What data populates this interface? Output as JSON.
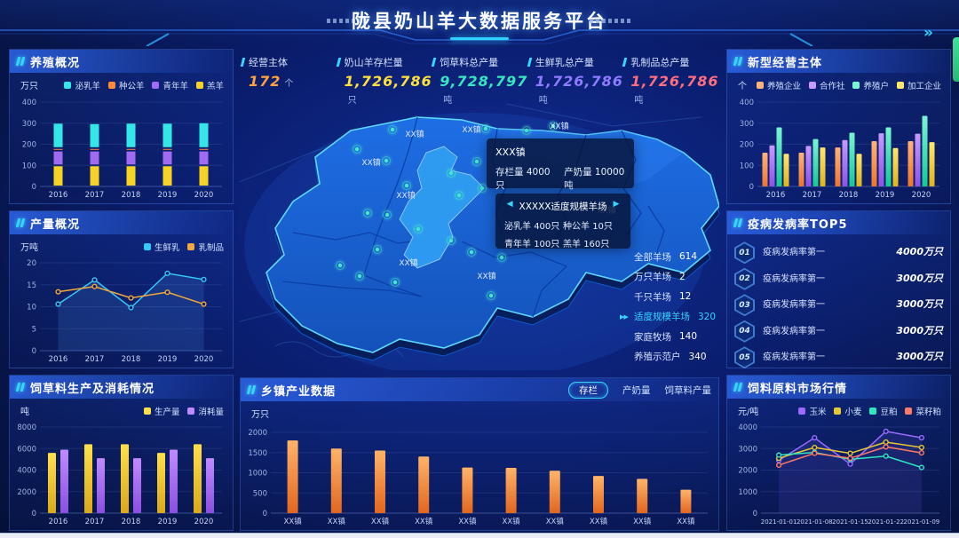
{
  "header": {
    "title": "陇县奶山羊大数据服务平台",
    "more_icon": "»"
  },
  "stats": {
    "items": [
      {
        "label": "经营主体",
        "value": "172",
        "unit": "个",
        "color": "#ffa23e"
      },
      {
        "label": "奶山羊存栏量",
        "value": "1,726,786",
        "unit": "只",
        "color": "#ffe03a"
      },
      {
        "label": "饲草料总产量",
        "value": "9,728,797",
        "unit": "吨",
        "color": "#35e8c0"
      },
      {
        "label": "生鲜乳总产量",
        "value": "1,726,786",
        "unit": "吨",
        "color": "#8f7bff"
      },
      {
        "label": "乳制品总产量",
        "value": "1,726,786",
        "unit": "吨",
        "color": "#ff6e7e"
      }
    ]
  },
  "map": {
    "town_label": "XX镇",
    "highlight_arrows": "▶▶",
    "tooltip_town": {
      "name": "XXX镇",
      "stock_label": "存栏量",
      "stock_value": "4000只",
      "milk_label": "产奶量",
      "milk_value": "10000吨"
    },
    "tooltip_farm": {
      "prev": "◀",
      "next": "▶",
      "title": "XXXXX适度规模羊场",
      "rows": [
        {
          "label": "泌乳羊",
          "value": "400只"
        },
        {
          "label": "种公羊",
          "value": "10只"
        },
        {
          "label": "青年羊",
          "value": "100只"
        },
        {
          "label": "羔羊",
          "value": "160只"
        }
      ]
    },
    "farm_stats": [
      {
        "label": "全部羊场",
        "value": "614",
        "highlight": false
      },
      {
        "label": "万只羊场",
        "value": "2",
        "highlight": false
      },
      {
        "label": "千只羊场",
        "value": "12",
        "highlight": false
      },
      {
        "label": "适度规模羊场",
        "value": "320",
        "highlight": true
      },
      {
        "label": "家庭牧场",
        "value": "140",
        "highlight": false
      },
      {
        "label": "养殖示范户",
        "value": "340",
        "highlight": false
      }
    ]
  },
  "panels": {
    "breeding": {
      "title": "养殖概况"
    },
    "production": {
      "title": "产量概况"
    },
    "feed": {
      "title": "饲草料生产及消耗情况"
    },
    "township": {
      "title": "乡镇产业数据",
      "tabs": [
        {
          "label": "存栏",
          "active": true
        },
        {
          "label": "产奶量",
          "active": false
        },
        {
          "label": "饲草料产量",
          "active": false
        }
      ]
    },
    "entities": {
      "title": "新型经营主体"
    },
    "disease": {
      "title": "疫病发病率TOP5",
      "rows": [
        {
          "rank": "01",
          "label": "疫病发病率第一",
          "value": "4000万只",
          "percent": 100
        },
        {
          "rank": "02",
          "label": "疫病发病率第一",
          "value": "3000万只",
          "percent": 82
        },
        {
          "rank": "03",
          "label": "疫病发病率第一",
          "value": "3000万只",
          "percent": 74
        },
        {
          "rank": "04",
          "label": "疫病发病率第一",
          "value": "3000万只",
          "percent": 69
        },
        {
          "rank": "05",
          "label": "疫病发病率第一",
          "value": "3000万只",
          "percent": 59
        }
      ]
    },
    "market": {
      "title": "饲料原料市场行情"
    }
  },
  "chart_data": [
    {
      "id": "breeding_overview",
      "type": "stacked_bar",
      "title": "养殖概况",
      "unit": "万只",
      "categories": [
        "2016",
        "2017",
        "2018",
        "2019",
        "2020"
      ],
      "ylim": [
        0,
        400
      ],
      "yticks": [
        0,
        100,
        200,
        300,
        400
      ],
      "series": [
        {
          "name": "羔羊",
          "color": "#f7d325",
          "values": [
            100,
            100,
            100,
            100,
            100
          ]
        },
        {
          "name": "青年羊",
          "color": "#a06bf0",
          "values": [
            70,
            70,
            70,
            70,
            70
          ]
        },
        {
          "name": "种公羊",
          "color": "#ff8a3c",
          "values": [
            12,
            12,
            12,
            12,
            12
          ]
        },
        {
          "name": "泌乳羊",
          "color": "#35e6e6",
          "values": [
            120,
            118,
            120,
            120,
            122
          ]
        }
      ],
      "legend": [
        {
          "label": "泌乳羊",
          "color": "#35e6e6"
        },
        {
          "label": "种公羊",
          "color": "#ff8a3c"
        },
        {
          "label": "青年羊",
          "color": "#a06bf0"
        },
        {
          "label": "羔羊",
          "color": "#f7d325"
        }
      ]
    },
    {
      "id": "production_overview",
      "type": "line",
      "title": "产量概况",
      "unit": "万吨",
      "categories": [
        "2016",
        "2017",
        "2018",
        "2019",
        "2020"
      ],
      "ylim": [
        0,
        20
      ],
      "yticks": [
        0,
        5,
        10,
        15,
        20
      ],
      "series": [
        {
          "name": "生鲜乳",
          "color": "#38c8f5",
          "area": "rgba(80,150,240,0.18)",
          "values": [
            10.6,
            16.1,
            9.8,
            17.6,
            16.2
          ]
        },
        {
          "name": "乳制品",
          "color": "#f2a93b",
          "values": [
            13.4,
            14.6,
            12,
            13.3,
            10.6
          ]
        }
      ]
    },
    {
      "id": "feed_production",
      "type": "grouped_bar",
      "title": "饲草料生产及消耗情况",
      "unit": "吨",
      "categories": [
        "2016",
        "2017",
        "2018",
        "2019",
        "2020"
      ],
      "ylim": [
        0,
        8000
      ],
      "yticks": [
        0,
        2000,
        4000,
        6000,
        8000
      ],
      "series": [
        {
          "name": "生产量",
          "color": "#ffe04a",
          "color2": "#d9a91a",
          "values": [
            5600,
            6400,
            6400,
            5600,
            6400
          ]
        },
        {
          "name": "消耗量",
          "color": "#c08bff",
          "color2": "#8a4fe0",
          "values": [
            5900,
            5100,
            5100,
            5900,
            5100
          ]
        }
      ]
    },
    {
      "id": "township_data",
      "type": "bar",
      "title": "乡镇产业数据",
      "unit": "万只",
      "categories": [
        "XX镇",
        "XX镇",
        "XX镇",
        "XX镇",
        "XX镇",
        "XX镇",
        "XX镇",
        "XX镇",
        "XX镇",
        "XX镇"
      ],
      "ylim": [
        0,
        2000
      ],
      "yticks": [
        0,
        500,
        1000,
        1500,
        2000
      ],
      "series": [
        {
          "name": "存栏",
          "color": "#ffb469",
          "color2": "#e2661e",
          "values": [
            1800,
            1600,
            1550,
            1400,
            1130,
            1120,
            1050,
            920,
            850,
            580
          ]
        }
      ]
    },
    {
      "id": "new_entities",
      "type": "grouped_bar",
      "title": "新型经营主体",
      "unit": "个",
      "categories": [
        "2016",
        "2017",
        "2018",
        "2019",
        "2020"
      ],
      "ylim": [
        0,
        400
      ],
      "yticks": [
        0,
        100,
        200,
        300,
        400
      ],
      "series": [
        {
          "name": "养殖企业",
          "color": "#ffb37a",
          "color2": "#f0742c",
          "values": [
            160,
            160,
            185,
            215,
            215
          ]
        },
        {
          "name": "合作社",
          "color": "#c79bff",
          "color2": "#8b52e8",
          "values": [
            195,
            192,
            220,
            252,
            250
          ]
        },
        {
          "name": "养殖户",
          "color": "#7af5d2",
          "color2": "#14c896",
          "values": [
            280,
            225,
            255,
            280,
            335
          ]
        },
        {
          "name": "加工企业",
          "color": "#ffe76b",
          "color2": "#e0b31a",
          "values": [
            155,
            185,
            155,
            182,
            210
          ]
        }
      ]
    },
    {
      "id": "feed_market",
      "type": "line",
      "title": "饲料原料市场行情",
      "unit": "元/吨",
      "categories": [
        "2021-01-01",
        "2021-01-08",
        "2021-01-15",
        "2021-01-22",
        "2021-01-09"
      ],
      "ylim": [
        0,
        4000
      ],
      "yticks": [
        0,
        1000,
        2000,
        3000,
        4000
      ],
      "series": [
        {
          "name": "玉米",
          "color": "#9b6bff",
          "area": "rgba(140,110,255,0.12)",
          "values": [
            2450,
            3500,
            2280,
            3800,
            3500
          ]
        },
        {
          "name": "小麦",
          "color": "#e8c832",
          "values": [
            2550,
            3050,
            2780,
            3300,
            3050
          ]
        },
        {
          "name": "豆粕",
          "color": "#2ee6c0",
          "values": [
            2700,
            2820,
            2500,
            2650,
            2120
          ]
        },
        {
          "name": "菜籽粕",
          "color": "#ff7a66",
          "values": [
            2230,
            2780,
            2550,
            3080,
            2800
          ]
        }
      ]
    }
  ]
}
